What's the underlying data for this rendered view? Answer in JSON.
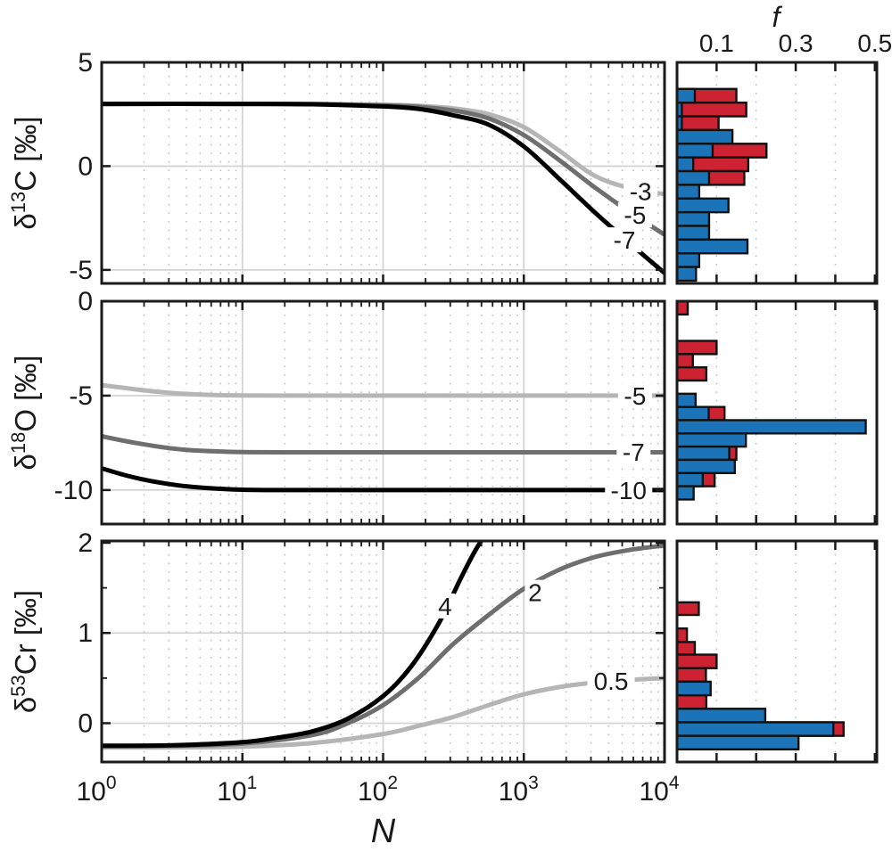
{
  "figure": {
    "background": "#ffffff"
  },
  "colors": {
    "red": "#cd2232",
    "blue": "#1c74b8",
    "curve_dark": "#000000",
    "curve_mid": "#6e6e6e",
    "curve_light": "#b5b5b5",
    "grid_solid": "#d4d4d4",
    "grid_dotted": "#c0c0c0",
    "axis": "#1a1a1a"
  },
  "chart_data": {
    "type": "line+histogram",
    "x_axis": {
      "label": "N",
      "scale": "log10",
      "range_log": [
        0,
        4
      ],
      "major_ticks": [
        {
          "log": 0,
          "base": "10",
          "exp": "0"
        },
        {
          "log": 1,
          "base": "10",
          "exp": "1"
        },
        {
          "log": 2,
          "base": "10",
          "exp": "2"
        },
        {
          "log": 3,
          "base": "10",
          "exp": "3"
        },
        {
          "log": 4,
          "base": "10",
          "exp": "4"
        }
      ],
      "minor_multiples": [
        2,
        3,
        4,
        5,
        6,
        7,
        8,
        9
      ]
    },
    "f_axis": {
      "label": "f",
      "range": [
        0,
        0.505
      ],
      "ticks": [
        0.1,
        0.2,
        0.3,
        0.4,
        0.5
      ],
      "labeled_ticks": [
        {
          "v": 0.1,
          "text": "0.1"
        },
        {
          "v": 0.3,
          "text": "0.3"
        },
        {
          "v": 0.5,
          "text": "0.5"
        }
      ],
      "grid_dotted_at": [
        0.1,
        0.2,
        0.3,
        0.4
      ]
    },
    "rows": [
      {
        "id": "d13C",
        "ylabel_parts": [
          {
            "t": "δ"
          },
          {
            "t": "13",
            "sup": true
          },
          {
            "t": "C [‰]"
          }
        ],
        "ylim": [
          5,
          -5.65
        ],
        "yticks": [
          {
            "v": 5,
            "text": "5"
          },
          {
            "v": 0,
            "text": "0"
          },
          {
            "v": -5,
            "text": "-5"
          }
        ],
        "yticks_minor": [],
        "grid_solid_y": [
          0,
          -5
        ],
        "curves": [
          {
            "label": "-3",
            "shade": "light",
            "points": [
              [
                0,
                3
              ],
              [
                1,
                3
              ],
              [
                1.5,
                2.99
              ],
              [
                2,
                2.96
              ],
              [
                2.25,
                2.91
              ],
              [
                2.5,
                2.78
              ],
              [
                2.75,
                2.5
              ],
              [
                3,
                1.88
              ],
              [
                3.25,
                0.75
              ],
              [
                3.5,
                -0.45
              ],
              [
                3.75,
                -1.05
              ],
              [
                4,
                -1.35
              ]
            ]
          },
          {
            "label": "-5",
            "shade": "mid",
            "points": [
              [
                0,
                3
              ],
              [
                1,
                3
              ],
              [
                1.5,
                2.99
              ],
              [
                2,
                2.93
              ],
              [
                2.25,
                2.86
              ],
              [
                2.5,
                2.68
              ],
              [
                2.75,
                2.3
              ],
              [
                3,
                1.5
              ],
              [
                3.25,
                0.3
              ],
              [
                3.5,
                -1.0
              ],
              [
                3.75,
                -2.2
              ],
              [
                4,
                -3.3
              ]
            ]
          },
          {
            "label": "-7",
            "shade": "dark",
            "points": [
              [
                0,
                3
              ],
              [
                1,
                3
              ],
              [
                1.5,
                2.98
              ],
              [
                2,
                2.88
              ],
              [
                2.25,
                2.76
              ],
              [
                2.5,
                2.45
              ],
              [
                2.75,
                2.0
              ],
              [
                3,
                0.95
              ],
              [
                3.25,
                -0.6
              ],
              [
                3.5,
                -2.2
              ],
              [
                3.75,
                -3.7
              ],
              [
                4,
                -5.15
              ]
            ]
          }
        ],
        "curve_labels": [
          {
            "text": "-3",
            "logx": 3.83,
            "y": -1.2,
            "shade": "light"
          },
          {
            "text": "-5",
            "logx": 3.79,
            "y": -2.35,
            "shade": "mid"
          },
          {
            "text": "-7",
            "logx": 3.715,
            "y": -3.55,
            "shade": "dark"
          }
        ],
        "histogram": {
          "bins": [
            {
              "y0": 3.72,
              "y1": 3.06,
              "red": 0.15,
              "blue": 0.045
            },
            {
              "y0": 3.06,
              "y1": 2.4,
              "red": 0.175,
              "blue": 0.012
            },
            {
              "y0": 2.4,
              "y1": 1.74,
              "red": 0.105,
              "blue": 0.012
            },
            {
              "y0": 1.74,
              "y1": 1.08,
              "red": 0,
              "blue": 0.14
            },
            {
              "y0": 1.08,
              "y1": 0.42,
              "red": 0.226,
              "blue": 0.09
            },
            {
              "y0": 0.42,
              "y1": -0.24,
              "red": 0.18,
              "blue": 0.041
            },
            {
              "y0": -0.24,
              "y1": -0.9,
              "red": 0.17,
              "blue": 0.081
            },
            {
              "y0": -0.9,
              "y1": -1.56,
              "red": 0,
              "blue": 0.056
            },
            {
              "y0": -1.56,
              "y1": -2.22,
              "red": 0,
              "blue": 0.13
            },
            {
              "y0": -2.22,
              "y1": -2.88,
              "red": 0,
              "blue": 0.081
            },
            {
              "y0": -2.88,
              "y1": -3.54,
              "red": 0,
              "blue": 0.081
            },
            {
              "y0": -3.54,
              "y1": -4.2,
              "red": 0,
              "blue": 0.178
            },
            {
              "y0": -4.2,
              "y1": -4.86,
              "red": 0,
              "blue": 0.056
            },
            {
              "y0": -4.86,
              "y1": -5.52,
              "red": 0,
              "blue": 0.048
            }
          ]
        }
      },
      {
        "id": "d18O",
        "ylabel_parts": [
          {
            "t": "δ"
          },
          {
            "t": "18",
            "sup": true
          },
          {
            "t": "O [‰]"
          }
        ],
        "ylim": [
          0,
          -11.8
        ],
        "yticks": [
          {
            "v": 0,
            "text": "0"
          },
          {
            "v": -5,
            "text": "-5"
          },
          {
            "v": -10,
            "text": "-10"
          }
        ],
        "yticks_minor": [],
        "grid_solid_y": [
          -5,
          -10
        ],
        "curves": [
          {
            "label": "-5",
            "shade": "light",
            "points": [
              [
                0,
                -4.45
              ],
              [
                0.15,
                -4.58
              ],
              [
                0.3,
                -4.72
              ],
              [
                0.45,
                -4.83
              ],
              [
                0.6,
                -4.91
              ],
              [
                0.8,
                -4.97
              ],
              [
                1,
                -4.99
              ],
              [
                1.3,
                -5
              ],
              [
                2,
                -5
              ],
              [
                3,
                -5
              ],
              [
                4,
                -5
              ]
            ]
          },
          {
            "label": "-7",
            "shade": "mid",
            "points": [
              [
                0,
                -7.15
              ],
              [
                0.15,
                -7.38
              ],
              [
                0.3,
                -7.58
              ],
              [
                0.45,
                -7.75
              ],
              [
                0.6,
                -7.87
              ],
              [
                0.8,
                -7.95
              ],
              [
                1,
                -7.99
              ],
              [
                1.3,
                -8
              ],
              [
                2,
                -8
              ],
              [
                3,
                -8
              ],
              [
                4,
                -8
              ]
            ]
          },
          {
            "label": "-10",
            "shade": "dark",
            "points": [
              [
                0,
                -8.85
              ],
              [
                0.15,
                -9.18
              ],
              [
                0.3,
                -9.45
              ],
              [
                0.45,
                -9.65
              ],
              [
                0.6,
                -9.8
              ],
              [
                0.8,
                -9.92
              ],
              [
                1,
                -9.98
              ],
              [
                1.3,
                -10
              ],
              [
                2,
                -10
              ],
              [
                3,
                -10
              ],
              [
                4,
                -10
              ]
            ]
          }
        ],
        "curve_labels": [
          {
            "text": "-5",
            "logx": 3.79,
            "y": -5.0,
            "shade": "light"
          },
          {
            "text": "-7",
            "logx": 3.78,
            "y": -7.98,
            "shade": "mid"
          },
          {
            "text": "-10",
            "logx": 3.745,
            "y": -10.0,
            "shade": "dark"
          }
        ],
        "histogram": {
          "bins": [
            {
              "y0": 0,
              "y1": -0.7,
              "red": 0.027,
              "blue": 0
            },
            {
              "y0": -2.1,
              "y1": -2.8,
              "red": 0.1,
              "blue": 0
            },
            {
              "y0": -2.8,
              "y1": -3.5,
              "red": 0.04,
              "blue": 0
            },
            {
              "y0": -3.5,
              "y1": -4.2,
              "red": 0.074,
              "blue": 0
            },
            {
              "y0": -4.9,
              "y1": -5.6,
              "red": 0,
              "blue": 0.047
            },
            {
              "y0": -5.6,
              "y1": -6.3,
              "red": 0.12,
              "blue": 0.08
            },
            {
              "y0": -6.3,
              "y1": -7.0,
              "red": 0,
              "blue": 0.477
            },
            {
              "y0": -7.0,
              "y1": -7.7,
              "red": 0,
              "blue": 0.174
            },
            {
              "y0": -7.7,
              "y1": -8.4,
              "red": 0.15,
              "blue": 0.132
            },
            {
              "y0": -8.4,
              "y1": -9.1,
              "red": 0,
              "blue": 0.146
            },
            {
              "y0": -9.1,
              "y1": -9.8,
              "red": 0.095,
              "blue": 0.065
            },
            {
              "y0": -9.8,
              "y1": -10.5,
              "red": 0,
              "blue": 0.042
            }
          ]
        }
      },
      {
        "id": "d53Cr",
        "ylabel_parts": [
          {
            "t": "δ"
          },
          {
            "t": "53",
            "sup": true
          },
          {
            "t": "Cr [‰]"
          }
        ],
        "ylim": [
          2.02,
          -0.43
        ],
        "yticks": [
          {
            "v": 2,
            "text": "2"
          },
          {
            "v": 1,
            "text": "1"
          },
          {
            "v": 0,
            "text": "0"
          }
        ],
        "yticks_minor": [
          1.5,
          0.5
        ],
        "grid_solid_y": [
          1,
          0
        ],
        "curves": [
          {
            "label": "0.5",
            "shade": "light",
            "points": [
              [
                0,
                -0.27
              ],
              [
                0.5,
                -0.268
              ],
              [
                1,
                -0.26
              ],
              [
                1.5,
                -0.22
              ],
              [
                2,
                -0.12
              ],
              [
                2.25,
                -0.03
              ],
              [
                2.5,
                0.07
              ],
              [
                2.75,
                0.2
              ],
              [
                3,
                0.32
              ],
              [
                3.25,
                0.4
              ],
              [
                3.5,
                0.45
              ],
              [
                3.75,
                0.48
              ],
              [
                4,
                0.5
              ]
            ]
          },
          {
            "label": "2",
            "shade": "mid",
            "points": [
              [
                0,
                -0.255
              ],
              [
                0.5,
                -0.25
              ],
              [
                1,
                -0.225
              ],
              [
                1.5,
                -0.13
              ],
              [
                1.75,
                0.0
              ],
              [
                2,
                0.2
              ],
              [
                2.25,
                0.5
              ],
              [
                2.5,
                0.88
              ],
              [
                2.75,
                1.2
              ],
              [
                3,
                1.49
              ],
              [
                3.25,
                1.7
              ],
              [
                3.5,
                1.84
              ],
              [
                3.75,
                1.92
              ],
              [
                4,
                1.97
              ]
            ]
          },
          {
            "label": "4",
            "shade": "dark",
            "points": [
              [
                0,
                -0.25
              ],
              [
                0.5,
                -0.245
              ],
              [
                1,
                -0.21
              ],
              [
                1.25,
                -0.16
              ],
              [
                1.5,
                -0.09
              ],
              [
                1.75,
                0.05
              ],
              [
                2,
                0.3
              ],
              [
                2.2,
                0.63
              ],
              [
                2.4,
                1.12
              ],
              [
                2.55,
                1.6
              ],
              [
                2.65,
                1.9
              ],
              [
                2.73,
                2.1
              ]
            ]
          }
        ],
        "curve_labels": [
          {
            "text": "4",
            "logx": 2.44,
            "y": 1.3,
            "shade": "dark"
          },
          {
            "text": "2",
            "logx": 3.08,
            "y": 1.45,
            "shade": "mid"
          },
          {
            "text": "0.5",
            "logx": 3.62,
            "y": 0.47,
            "shade": "light"
          }
        ],
        "histogram": {
          "bins": [
            {
              "y0": 1.34,
              "y1": 1.2,
              "red": 0.055,
              "blue": 0
            },
            {
              "y0": 1.05,
              "y1": 0.9,
              "red": 0.025,
              "blue": 0
            },
            {
              "y0": 0.9,
              "y1": 0.76,
              "red": 0.045,
              "blue": 0
            },
            {
              "y0": 0.76,
              "y1": 0.61,
              "red": 0.1,
              "blue": 0
            },
            {
              "y0": 0.61,
              "y1": 0.46,
              "red": 0.073,
              "blue": 0
            },
            {
              "y0": 0.46,
              "y1": 0.31,
              "red": 0,
              "blue": 0.085
            },
            {
              "y0": 0.31,
              "y1": 0.16,
              "red": 0.074,
              "blue": 0
            },
            {
              "y0": 0.16,
              "y1": 0.01,
              "red": 0,
              "blue": 0.223
            },
            {
              "y0": 0.01,
              "y1": -0.14,
              "red": 0.421,
              "blue": 0.395
            },
            {
              "y0": -0.14,
              "y1": -0.29,
              "red": 0,
              "blue": 0.307
            }
          ]
        }
      }
    ]
  }
}
